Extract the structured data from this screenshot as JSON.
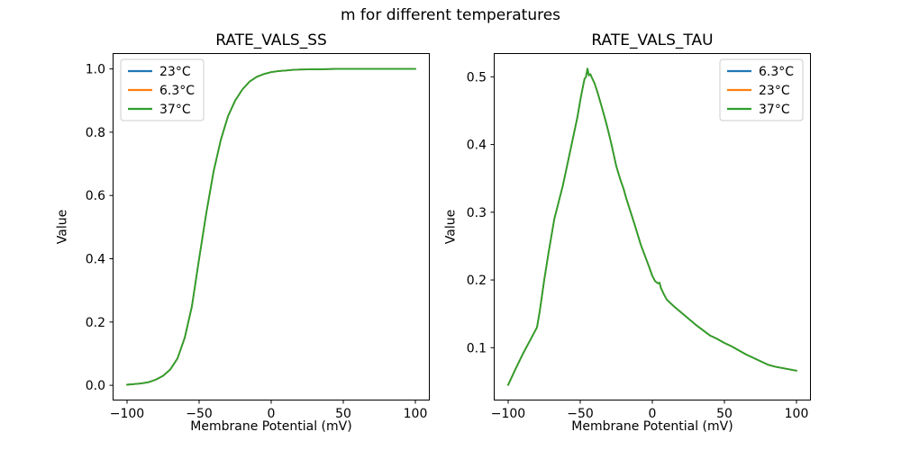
{
  "figure": {
    "suptitle": "m for different temperatures",
    "background": "#ffffff"
  },
  "colors": {
    "blue": "#1f77b4",
    "orange": "#ff7f0e",
    "green": "#2ca02c",
    "axis": "#000000",
    "legend_border": "#cccccc"
  },
  "note": "All three temperature series overlap exactly in both subplots; the green 37°C line is drawn last and is the visible one.",
  "chart_data": [
    {
      "type": "line",
      "title": "RATE_VALS_SS",
      "xlabel": "Membrane Potential (mV)",
      "ylabel": "Value",
      "xlim": [
        -110,
        110
      ],
      "ylim": [
        -0.048,
        1.05
      ],
      "grid": false,
      "xticks": {
        "values": [
          -100,
          -50,
          0,
          50,
          100
        ],
        "labels": [
          "−100",
          "−50",
          "0",
          "50",
          "100"
        ]
      },
      "yticks": {
        "values": [
          0.0,
          0.2,
          0.4,
          0.6,
          0.8,
          1.0
        ],
        "labels": [
          "0.0",
          "0.2",
          "0.4",
          "0.6",
          "0.8",
          "1.0"
        ]
      },
      "legend": {
        "position": "upper-left",
        "entries": [
          {
            "label": "23°C",
            "color": "#1f77b4"
          },
          {
            "label": "6.3°C",
            "color": "#ff7f0e"
          },
          {
            "label": "37°C",
            "color": "#2ca02c"
          }
        ]
      },
      "x": [
        -100,
        -95,
        -90,
        -85,
        -80,
        -75,
        -70,
        -65,
        -60,
        -55,
        -50,
        -45,
        -40,
        -35,
        -30,
        -25,
        -20,
        -15,
        -10,
        -5,
        0,
        5,
        10,
        15,
        20,
        25,
        30,
        35,
        40,
        45,
        50,
        55,
        60,
        65,
        70,
        75,
        80,
        85,
        90,
        95,
        100
      ],
      "y_shared": [
        0.002,
        0.004,
        0.006,
        0.01,
        0.018,
        0.03,
        0.05,
        0.085,
        0.15,
        0.25,
        0.4,
        0.545,
        0.675,
        0.775,
        0.85,
        0.9,
        0.935,
        0.96,
        0.975,
        0.984,
        0.99,
        0.993,
        0.995,
        0.997,
        0.998,
        0.9985,
        0.999,
        0.999,
        0.9995,
        1.0,
        1.0,
        1.0,
        1.0,
        1.0,
        1.0,
        1.0,
        1.0,
        1.0,
        1.0,
        1.0,
        1.0
      ],
      "series": [
        {
          "name": "23°C",
          "color": "#1f77b4",
          "values": "y_shared"
        },
        {
          "name": "6.3°C",
          "color": "#ff7f0e",
          "values": "y_shared"
        },
        {
          "name": "37°C",
          "color": "#2ca02c",
          "values": "y_shared"
        }
      ]
    },
    {
      "type": "line",
      "title": "RATE_VALS_TAU",
      "xlabel": "Membrane Potential (mV)",
      "ylabel": "Value",
      "xlim": [
        -110,
        110
      ],
      "ylim": [
        0.022,
        0.535
      ],
      "grid": false,
      "xticks": {
        "values": [
          -100,
          -50,
          0,
          50,
          100
        ],
        "labels": [
          "−100",
          "−50",
          "0",
          "50",
          "100"
        ]
      },
      "yticks": {
        "values": [
          0.1,
          0.2,
          0.3,
          0.4,
          0.5
        ],
        "labels": [
          "0.1",
          "0.2",
          "0.3",
          "0.4",
          "0.5"
        ]
      },
      "legend": {
        "position": "upper-right",
        "entries": [
          {
            "label": "6.3°C",
            "color": "#1f77b4"
          },
          {
            "label": "23°C",
            "color": "#ff7f0e"
          },
          {
            "label": "37°C",
            "color": "#2ca02c"
          }
        ]
      },
      "x": [
        -100,
        -95,
        -90,
        -85,
        -80,
        -78,
        -75,
        -72,
        -70,
        -68,
        -65,
        -62,
        -60,
        -58,
        -55,
        -52,
        -50,
        -48,
        -47,
        -46,
        -45,
        -44,
        -43,
        -42,
        -40,
        -38,
        -35,
        -32,
        -30,
        -28,
        -25,
        -22,
        -20,
        -18,
        -15,
        -12,
        -10,
        -8,
        -5,
        -2,
        0,
        2,
        4,
        5,
        6,
        8,
        10,
        15,
        20,
        25,
        30,
        35,
        40,
        45,
        50,
        55,
        60,
        65,
        70,
        75,
        80,
        85,
        90,
        95,
        100
      ],
      "y_shared": [
        0.045,
        0.068,
        0.09,
        0.11,
        0.13,
        0.155,
        0.2,
        0.24,
        0.265,
        0.29,
        0.315,
        0.34,
        0.36,
        0.38,
        0.41,
        0.44,
        0.465,
        0.487,
        0.497,
        0.5,
        0.512,
        0.502,
        0.504,
        0.499,
        0.49,
        0.477,
        0.455,
        0.432,
        0.415,
        0.397,
        0.368,
        0.347,
        0.335,
        0.32,
        0.3,
        0.28,
        0.266,
        0.252,
        0.235,
        0.218,
        0.206,
        0.198,
        0.195,
        0.196,
        0.188,
        0.179,
        0.171,
        0.161,
        0.152,
        0.143,
        0.134,
        0.126,
        0.118,
        0.113,
        0.107,
        0.102,
        0.096,
        0.09,
        0.085,
        0.08,
        0.075,
        0.072,
        0.07,
        0.068,
        0.066
      ],
      "series": [
        {
          "name": "6.3°C",
          "color": "#1f77b4",
          "values": "y_shared"
        },
        {
          "name": "23°C",
          "color": "#ff7f0e",
          "values": "y_shared"
        },
        {
          "name": "37°C",
          "color": "#2ca02c",
          "values": "y_shared"
        }
      ]
    }
  ]
}
